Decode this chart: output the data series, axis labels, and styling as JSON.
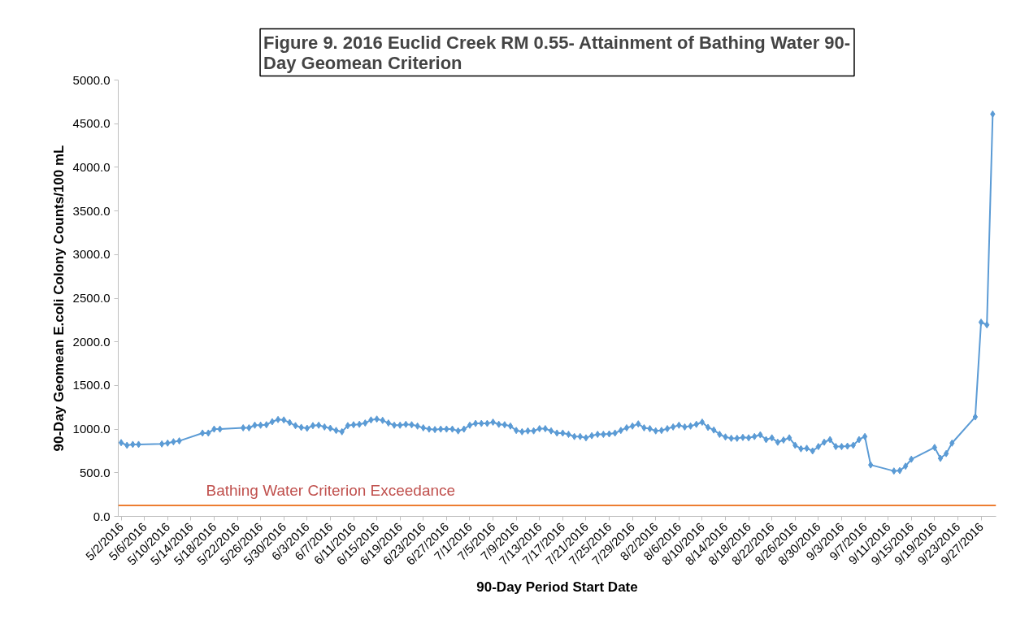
{
  "chart_data": {
    "type": "line",
    "title": "Figure 9. 2016 Euclid Creek RM 0.55- Attainment of Bathing Water 90-\nDay Geomean Criterion",
    "xlabel": "90-Day Period Start Date",
    "ylabel": "90-Day Geomean E.coli Colony Counts/100 mL",
    "x": [
      "2016-05-02",
      "2016-05-03",
      "2016-05-04",
      "2016-05-05",
      "2016-05-09",
      "2016-05-10",
      "2016-05-11",
      "2016-05-12",
      "2016-05-16",
      "2016-05-17",
      "2016-05-18",
      "2016-05-19",
      "2016-05-23",
      "2016-05-24",
      "2016-05-25",
      "2016-05-26",
      "2016-05-27",
      "2016-05-28",
      "2016-05-29",
      "2016-05-30",
      "2016-05-31",
      "2016-06-01",
      "2016-06-02",
      "2016-06-03",
      "2016-06-04",
      "2016-06-05",
      "2016-06-06",
      "2016-06-07",
      "2016-06-08",
      "2016-06-09",
      "2016-06-10",
      "2016-06-11",
      "2016-06-12",
      "2016-06-13",
      "2016-06-14",
      "2016-06-15",
      "2016-06-16",
      "2016-06-17",
      "2016-06-18",
      "2016-06-19",
      "2016-06-20",
      "2016-06-21",
      "2016-06-22",
      "2016-06-23",
      "2016-06-24",
      "2016-06-25",
      "2016-06-26",
      "2016-06-27",
      "2016-06-28",
      "2016-06-29",
      "2016-06-30",
      "2016-07-01",
      "2016-07-02",
      "2016-07-03",
      "2016-07-04",
      "2016-07-05",
      "2016-07-06",
      "2016-07-07",
      "2016-07-08",
      "2016-07-09",
      "2016-07-10",
      "2016-07-11",
      "2016-07-12",
      "2016-07-13",
      "2016-07-14",
      "2016-07-15",
      "2016-07-16",
      "2016-07-17",
      "2016-07-18",
      "2016-07-19",
      "2016-07-20",
      "2016-07-21",
      "2016-07-22",
      "2016-07-23",
      "2016-07-24",
      "2016-07-25",
      "2016-07-26",
      "2016-07-27",
      "2016-07-28",
      "2016-07-29",
      "2016-07-30",
      "2016-07-31",
      "2016-08-01",
      "2016-08-02",
      "2016-08-03",
      "2016-08-04",
      "2016-08-05",
      "2016-08-06",
      "2016-08-07",
      "2016-08-08",
      "2016-08-09",
      "2016-08-10",
      "2016-08-11",
      "2016-08-12",
      "2016-08-13",
      "2016-08-14",
      "2016-08-15",
      "2016-08-16",
      "2016-08-17",
      "2016-08-18",
      "2016-08-19",
      "2016-08-20",
      "2016-08-21",
      "2016-08-22",
      "2016-08-23",
      "2016-08-24",
      "2016-08-25",
      "2016-08-26",
      "2016-08-27",
      "2016-08-28",
      "2016-08-29",
      "2016-08-30",
      "2016-08-31",
      "2016-09-01",
      "2016-09-02",
      "2016-09-03",
      "2016-09-04",
      "2016-09-05",
      "2016-09-06",
      "2016-09-07",
      "2016-09-08",
      "2016-09-12",
      "2016-09-13",
      "2016-09-14",
      "2016-09-15",
      "2016-09-19",
      "2016-09-20",
      "2016-09-21",
      "2016-09-22",
      "2016-09-26",
      "2016-09-27",
      "2016-09-28",
      "2016-09-29"
    ],
    "series": [
      {
        "color": "#5b9bd5",
        "values": [
          845,
          815,
          825,
          825,
          830,
          840,
          855,
          865,
          955,
          955,
          1000,
          1000,
          1015,
          1015,
          1045,
          1045,
          1050,
          1085,
          1110,
          1105,
          1075,
          1040,
          1020,
          1010,
          1040,
          1045,
          1025,
          1010,
          985,
          970,
          1040,
          1050,
          1055,
          1070,
          1105,
          1115,
          1100,
          1070,
          1045,
          1045,
          1055,
          1050,
          1035,
          1015,
          1000,
          995,
          1000,
          1000,
          1000,
          980,
          1000,
          1045,
          1065,
          1065,
          1065,
          1080,
          1055,
          1050,
          1035,
          985,
          970,
          980,
          980,
          1005,
          1005,
          980,
          955,
          955,
          940,
          915,
          915,
          900,
          925,
          940,
          940,
          945,
          955,
          985,
          1015,
          1035,
          1060,
          1015,
          1005,
          980,
          985,
          1005,
          1025,
          1045,
          1025,
          1035,
          1055,
          1080,
          1020,
          990,
          940,
          910,
          895,
          895,
          905,
          900,
          915,
          935,
          880,
          900,
          850,
          875,
          900,
          815,
          775,
          780,
          750,
          800,
          850,
          880,
          800,
          800,
          805,
          815,
          880,
          915,
          590,
          520,
          525,
          575,
          655,
          790,
          665,
          720,
          840,
          1140,
          2225,
          2195,
          4610
        ]
      }
    ],
    "xlim": [
      "2016-05-01T12:00",
      "2016-09-29T14:00"
    ],
    "xticks": [
      {
        "value": "2016-05-02",
        "label": "5/2/2016"
      },
      {
        "value": "2016-05-06",
        "label": "5/6/2016"
      },
      {
        "value": "2016-05-10",
        "label": "5/10/2016"
      },
      {
        "value": "2016-05-14",
        "label": "5/14/2016"
      },
      {
        "value": "2016-05-18",
        "label": "5/18/2016"
      },
      {
        "value": "2016-05-22",
        "label": "5/22/2016"
      },
      {
        "value": "2016-05-26",
        "label": "5/26/2016"
      },
      {
        "value": "2016-05-30",
        "label": "5/30/2016"
      },
      {
        "value": "2016-06-03",
        "label": "6/3/2016"
      },
      {
        "value": "2016-06-07",
        "label": "6/7/2016"
      },
      {
        "value": "2016-06-11",
        "label": "6/11/2016"
      },
      {
        "value": "2016-06-15",
        "label": "6/15/2016"
      },
      {
        "value": "2016-06-19",
        "label": "6/19/2016"
      },
      {
        "value": "2016-06-23",
        "label": "6/23/2016"
      },
      {
        "value": "2016-06-27",
        "label": "6/27/2016"
      },
      {
        "value": "2016-07-01",
        "label": "7/1/2016"
      },
      {
        "value": "2016-07-05",
        "label": "7/5/2016"
      },
      {
        "value": "2016-07-09",
        "label": "7/9/2016"
      },
      {
        "value": "2016-07-13",
        "label": "7/13/2016"
      },
      {
        "value": "2016-07-17",
        "label": "7/17/2016"
      },
      {
        "value": "2016-07-21",
        "label": "7/21/2016"
      },
      {
        "value": "2016-07-25",
        "label": "7/25/2016"
      },
      {
        "value": "2016-07-29",
        "label": "7/29/2016"
      },
      {
        "value": "2016-08-02",
        "label": "8/2/2016"
      },
      {
        "value": "2016-08-06",
        "label": "8/6/2016"
      },
      {
        "value": "2016-08-10",
        "label": "8/10/2016"
      },
      {
        "value": "2016-08-14",
        "label": "8/14/2016"
      },
      {
        "value": "2016-08-18",
        "label": "8/18/2016"
      },
      {
        "value": "2016-08-22",
        "label": "8/22/2016"
      },
      {
        "value": "2016-08-26",
        "label": "8/26/2016"
      },
      {
        "value": "2016-08-30",
        "label": "8/30/2016"
      },
      {
        "value": "2016-09-03",
        "label": "9/3/2016"
      },
      {
        "value": "2016-09-07",
        "label": "9/7/2016"
      },
      {
        "value": "2016-09-11",
        "label": "9/11/2016"
      },
      {
        "value": "2016-09-15",
        "label": "9/15/2016"
      },
      {
        "value": "2016-09-19",
        "label": "9/19/2016"
      },
      {
        "value": "2016-09-23",
        "label": "9/23/2016"
      },
      {
        "value": "2016-09-27",
        "label": "9/27/2016"
      }
    ],
    "ylim": [
      0,
      5000
    ],
    "yticks": [
      {
        "value": 0,
        "label": "0.0"
      },
      {
        "value": 500,
        "label": "500.0"
      },
      {
        "value": 1000,
        "label": "1000.0"
      },
      {
        "value": 1500,
        "label": "1500.0"
      },
      {
        "value": 2000,
        "label": "2000.0"
      },
      {
        "value": 2500,
        "label": "2500.0"
      },
      {
        "value": 3000,
        "label": "3000.0"
      },
      {
        "value": 3500,
        "label": "3500.0"
      },
      {
        "value": 4000,
        "label": "4000.0"
      },
      {
        "value": 4500,
        "label": "4500.0"
      },
      {
        "value": 5000,
        "label": "5000.0"
      }
    ],
    "ref_lines": [
      {
        "axis": "y",
        "value": 126,
        "label": "Bathing Water Criterion Exceedance",
        "color": "#ed7d31"
      }
    ],
    "marker": "diamond",
    "line_style": "solid",
    "grid": false
  }
}
